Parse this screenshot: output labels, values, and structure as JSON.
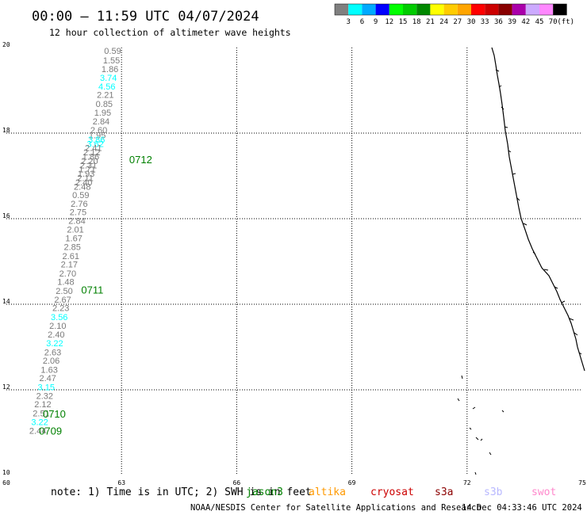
{
  "header": {
    "title": "00:00 – 11:59 UTC 04/07/2024",
    "subtitle": "12 hour collection of altimeter wave heights"
  },
  "colorbar": {
    "colors": [
      "#808080",
      "#00ffff",
      "#00aaff",
      "#0000ff",
      "#00ff00",
      "#00cc00",
      "#008800",
      "#ffff00",
      "#ffcc00",
      "#ffa500",
      "#ff0000",
      "#cc0000",
      "#880000",
      "#aa00aa",
      "#ccaaff",
      "#ff88ff",
      "#000000"
    ],
    "labels": [
      "3",
      "6",
      "9",
      "12",
      "15",
      "18",
      "21",
      "24",
      "27",
      "30",
      "33",
      "36",
      "39",
      "42",
      "45",
      "70"
    ],
    "unit": "(ft)"
  },
  "footer": {
    "note": "note:  1) Time is in UTC; 2) SWH is in feet",
    "satellites": [
      {
        "name": "jason3",
        "color": "#008000"
      },
      {
        "name": "altika",
        "color": "#ff9900"
      },
      {
        "name": "cryosat",
        "color": "#cc0000"
      },
      {
        "name": "s3a",
        "color": "#8b0000"
      },
      {
        "name": "s3b",
        "color": "#b8b8ff"
      },
      {
        "name": "swot",
        "color": "#ff88cc"
      }
    ],
    "credit": "NOAA/NESDIS Center for Satellite Applications and Research",
    "timestamp": "14 Dec 04:33:46 UTC 2024"
  },
  "chart_data": {
    "type": "scatter",
    "title": "12 hour collection of altimeter wave heights",
    "xlim": [
      60,
      75
    ],
    "ylim": [
      10,
      20
    ],
    "x_ticks": [
      "60",
      "63",
      "66",
      "69",
      "72",
      "75"
    ],
    "y_ticks": [
      "10",
      "12",
      "14",
      "16",
      "18",
      "20"
    ],
    "gridlines": true,
    "series": [
      {
        "points": [
          {
            "x": 62.99,
            "y": 19.85,
            "swh": "0.59"
          },
          {
            "x": 62.96,
            "y": 19.63,
            "swh": "1.55"
          },
          {
            "x": 62.92,
            "y": 19.43,
            "swh": "1.86"
          },
          {
            "x": 62.88,
            "y": 19.22,
            "swh": "3.74"
          },
          {
            "x": 62.84,
            "y": 19.02,
            "swh": "4.56"
          },
          {
            "x": 62.8,
            "y": 18.82,
            "swh": "2.21"
          },
          {
            "x": 62.77,
            "y": 18.61,
            "swh": "0.85"
          },
          {
            "x": 62.73,
            "y": 18.41,
            "swh": "1.95"
          },
          {
            "x": 62.69,
            "y": 18.2,
            "swh": "2.84"
          },
          {
            "x": 62.63,
            "y": 18.0,
            "swh": "2.60"
          },
          {
            "x": 62.59,
            "y": 17.88,
            "swh": "1.95"
          },
          {
            "x": 62.57,
            "y": 17.78,
            "swh": "3.86"
          },
          {
            "x": 62.54,
            "y": 17.68,
            "swh": "3.62"
          },
          {
            "x": 62.49,
            "y": 17.58,
            "swh": "2.41"
          },
          {
            "x": 62.45,
            "y": 17.48,
            "swh": "2.12"
          },
          {
            "x": 62.42,
            "y": 17.38,
            "swh": "1.86"
          },
          {
            "x": 62.39,
            "y": 17.28,
            "swh": "2.20"
          },
          {
            "x": 62.36,
            "y": 17.18,
            "swh": "2.31"
          },
          {
            "x": 62.33,
            "y": 17.08,
            "swh": "1.71"
          },
          {
            "x": 62.3,
            "y": 16.98,
            "swh": "1.93"
          },
          {
            "x": 62.27,
            "y": 16.88,
            "swh": "2.11"
          },
          {
            "x": 62.24,
            "y": 16.78,
            "swh": "2.40"
          },
          {
            "x": 62.2,
            "y": 16.68,
            "swh": "2.48"
          },
          {
            "x": 62.16,
            "y": 16.48,
            "swh": "0.59"
          },
          {
            "x": 62.12,
            "y": 16.28,
            "swh": "2.76"
          },
          {
            "x": 62.09,
            "y": 16.08,
            "swh": "2.75"
          },
          {
            "x": 62.06,
            "y": 15.88,
            "swh": "2.84"
          },
          {
            "x": 62.02,
            "y": 15.68,
            "swh": "2.01"
          },
          {
            "x": 61.98,
            "y": 15.47,
            "swh": "1.67"
          },
          {
            "x": 61.94,
            "y": 15.27,
            "swh": "2.85"
          },
          {
            "x": 61.9,
            "y": 15.06,
            "swh": "2.61"
          },
          {
            "x": 61.86,
            "y": 14.86,
            "swh": "2.17"
          },
          {
            "x": 61.82,
            "y": 14.65,
            "swh": "2.70"
          },
          {
            "x": 61.77,
            "y": 14.45,
            "swh": "1.48"
          },
          {
            "x": 61.73,
            "y": 14.24,
            "swh": "2.50"
          },
          {
            "x": 61.69,
            "y": 14.04,
            "swh": "2.67"
          },
          {
            "x": 61.64,
            "y": 13.84,
            "swh": "2.23"
          },
          {
            "x": 61.6,
            "y": 13.63,
            "swh": "3.56"
          },
          {
            "x": 61.56,
            "y": 13.43,
            "swh": "2.10"
          },
          {
            "x": 61.52,
            "y": 13.22,
            "swh": "2.40"
          },
          {
            "x": 61.48,
            "y": 13.02,
            "swh": "3.22"
          },
          {
            "x": 61.43,
            "y": 12.81,
            "swh": "2.63"
          },
          {
            "x": 61.39,
            "y": 12.61,
            "swh": "2.06"
          },
          {
            "x": 61.34,
            "y": 12.4,
            "swh": "1.63"
          },
          {
            "x": 61.3,
            "y": 12.2,
            "swh": "2.47"
          },
          {
            "x": 61.26,
            "y": 11.99,
            "swh": "3.15"
          },
          {
            "x": 61.22,
            "y": 11.79,
            "swh": "2.32"
          },
          {
            "x": 61.17,
            "y": 11.59,
            "swh": "2.12"
          },
          {
            "x": 61.13,
            "y": 11.38,
            "swh": "2.51"
          },
          {
            "x": 61.09,
            "y": 11.18,
            "swh": "3.22"
          },
          {
            "x": 61.04,
            "y": 10.97,
            "swh": "2.44"
          }
        ]
      }
    ],
    "pass_labels": [
      {
        "text": "0712",
        "x": 63.2,
        "y": 17.3
      },
      {
        "text": "0711",
        "x": 61.95,
        "y": 14.25
      },
      {
        "text": "0710",
        "x": 60.95,
        "y": 11.35
      },
      {
        "text": "0709",
        "x": 60.85,
        "y": 10.95
      }
    ]
  }
}
